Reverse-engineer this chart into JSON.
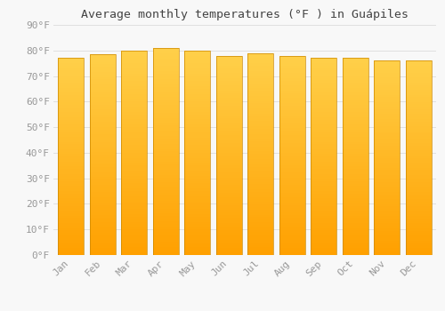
{
  "title": "Average monthly temperatures (°F ) in Guápiles",
  "months": [
    "Jan",
    "Feb",
    "Mar",
    "Apr",
    "May",
    "Jun",
    "Jul",
    "Aug",
    "Sep",
    "Oct",
    "Nov",
    "Dec"
  ],
  "values": [
    77,
    78.5,
    80,
    81,
    80,
    78,
    79,
    78,
    77,
    77,
    76,
    76
  ],
  "ylim": [
    0,
    90
  ],
  "yticks": [
    0,
    10,
    20,
    30,
    40,
    50,
    60,
    70,
    80,
    90
  ],
  "ytick_labels": [
    "0°F",
    "10°F",
    "20°F",
    "30°F",
    "40°F",
    "50°F",
    "60°F",
    "70°F",
    "80°F",
    "90°F"
  ],
  "bar_color_top": "#FFD04A",
  "bar_color_bottom": "#FFA000",
  "bar_edge_color": "#CC8800",
  "background_color": "#F8F8F8",
  "grid_color": "#E0E0E0",
  "title_fontsize": 9.5,
  "tick_fontsize": 8,
  "font_family": "monospace"
}
